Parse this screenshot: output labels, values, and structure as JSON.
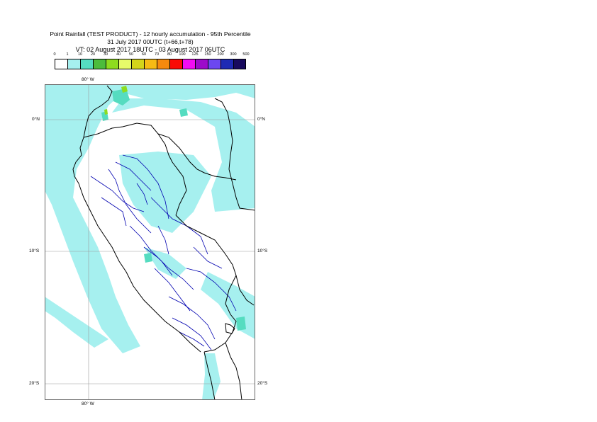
{
  "title": {
    "line1": "Point Rainfall (TEST PRODUCT) - 12 hourly accumulation - 95th Percentile",
    "line2": "31 July 2017 00UTC (t+66,t+78)",
    "line3": "VT: 02 August 2017 18UTC - 03 August 2017 06UTC"
  },
  "legend": {
    "labels": [
      "0",
      "1",
      "10",
      "20",
      "30",
      "40",
      "50",
      "60",
      "70",
      "80",
      "100",
      "125",
      "150",
      "200",
      "300",
      "500"
    ],
    "colors": [
      "#ffffff",
      "#a6f0ef",
      "#55dcc0",
      "#4cbc3c",
      "#8edc1f",
      "#e6fa6a",
      "#d4d41a",
      "#f6ba14",
      "#f58a0e",
      "#f90b06",
      "#f20cf2",
      "#9c0aca",
      "#6c48f0",
      "#1e2ab4",
      "#180a5e"
    ]
  },
  "axes": {
    "lon_top": "80° W",
    "lon_bottom": "80° W",
    "lat_labels": [
      "0°N",
      "10°S",
      "20°S"
    ]
  },
  "map_colors": {
    "ocean": "#ffffff",
    "rain_light": "#a6f0ef",
    "rain_medium": "#55dcc0",
    "rain_heavy": "#8edc1f",
    "country_border": "#000000",
    "region_border": "#0000b0"
  }
}
